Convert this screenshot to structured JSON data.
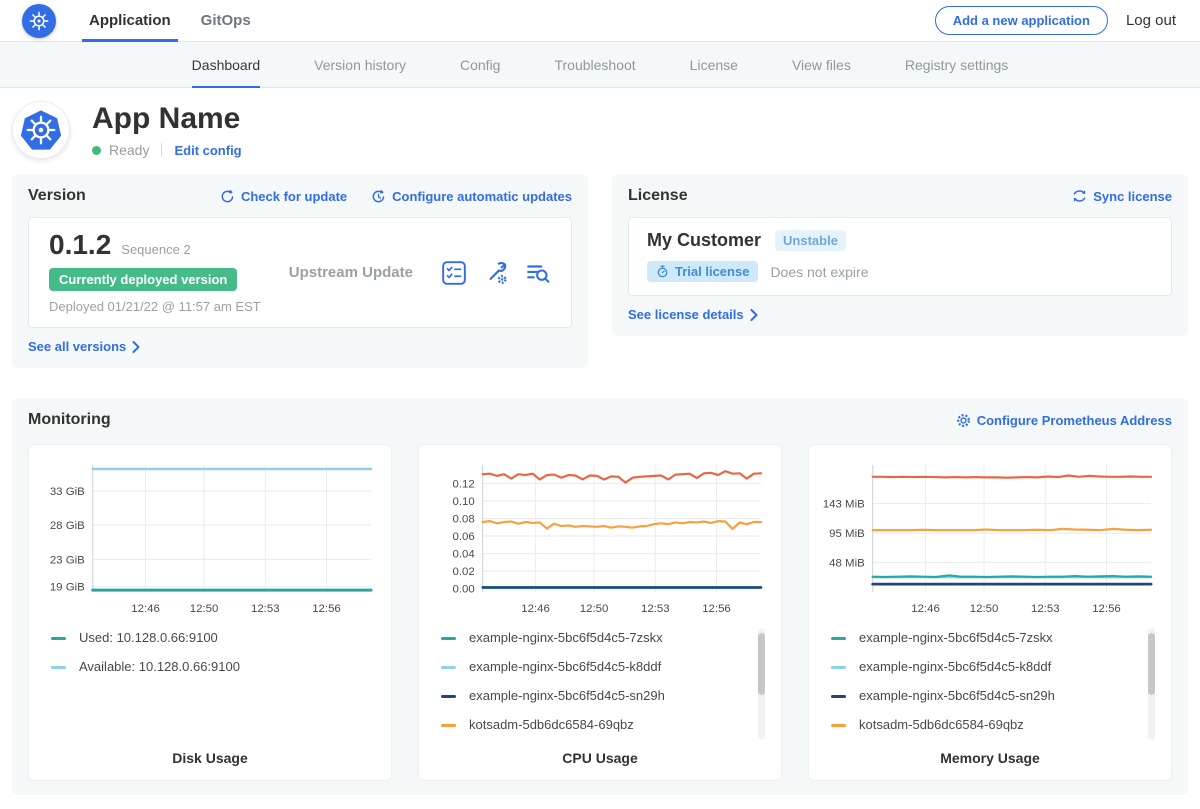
{
  "brand": {
    "accent": "#326de6"
  },
  "top_nav": {
    "tabs": [
      {
        "label": "Application"
      },
      {
        "label": "GitOps"
      }
    ],
    "add_app_button": "Add a new application",
    "log_out": "Log out"
  },
  "sub_nav": {
    "tabs": [
      "Dashboard",
      "Version history",
      "Config",
      "Troubleshoot",
      "License",
      "View files",
      "Registry settings"
    ],
    "active": "Dashboard"
  },
  "app_header": {
    "title": "App Name",
    "status": "Ready",
    "edit_config": "Edit config"
  },
  "version": {
    "heading": "Version",
    "check_for_update": "Check for update",
    "configure_auto_updates": "Configure automatic updates",
    "number": "0.1.2",
    "sequence": "Sequence 2",
    "deployed_badge": "Currently deployed version",
    "deployed_at": "Deployed 01/21/22 @ 11:57 am EST",
    "source": "Upstream Update",
    "see_all": "See all versions"
  },
  "license": {
    "heading": "License",
    "sync": "Sync license",
    "customer": "My Customer",
    "channel_badge": "Unstable",
    "type_badge": "Trial license",
    "expiration": "Does not expire",
    "details": "See license details"
  },
  "monitoring": {
    "heading": "Monitoring",
    "configure": "Configure Prometheus Address"
  },
  "chart_data": [
    {
      "type": "line",
      "title": "Disk Usage",
      "ylim": [
        18.2,
        36.8
      ],
      "yticks": [
        {
          "value": 33,
          "label": "33 GiB"
        },
        {
          "value": 28,
          "label": "28 GiB"
        },
        {
          "value": 23,
          "label": "23 GiB"
        },
        {
          "value": 19,
          "label": "19 GiB"
        }
      ],
      "xticks": [
        {
          "pos": 0.19,
          "label": "12:46"
        },
        {
          "pos": 0.4,
          "label": "12:50"
        },
        {
          "pos": 0.62,
          "label": "12:53"
        },
        {
          "pos": 0.84,
          "label": "12:56"
        }
      ],
      "grid": true,
      "legend_position": "bottom-left",
      "legend_scrollbar": false,
      "legend": [
        {
          "label": "Used: 10.128.0.66:9100",
          "color": "#28a7a4"
        },
        {
          "label": "Available: 10.128.0.66:9100",
          "color": "#8cd3e6"
        }
      ],
      "series": [
        {
          "name": "Used: 10.128.0.66:9100",
          "color": "#28a7a4",
          "width": 3,
          "values": [
            18.5,
            18.5
          ]
        },
        {
          "name": "Available: 10.128.0.66:9100",
          "color": "#8cd3e6",
          "width": 2.5,
          "values": [
            36.2,
            36.2
          ]
        }
      ]
    },
    {
      "type": "line",
      "title": "CPU Usage",
      "ylim": [
        -0.004,
        0.141
      ],
      "yticks": [
        {
          "value": 0.12,
          "label": "0.12"
        },
        {
          "value": 0.1,
          "label": "0.10"
        },
        {
          "value": 0.08,
          "label": "0.08"
        },
        {
          "value": 0.06,
          "label": "0.06"
        },
        {
          "value": 0.04,
          "label": "0.04"
        },
        {
          "value": 0.02,
          "label": "0.02"
        },
        {
          "value": 0.0,
          "label": "0.00"
        }
      ],
      "xticks": [
        {
          "pos": 0.19,
          "label": "12:46"
        },
        {
          "pos": 0.4,
          "label": "12:50"
        },
        {
          "pos": 0.62,
          "label": "12:53"
        },
        {
          "pos": 0.84,
          "label": "12:56"
        }
      ],
      "grid": true,
      "legend_position": "bottom-left",
      "legend_scrollbar": true,
      "legend": [
        {
          "label": "example-nginx-5bc6f5d4c5-7zskx",
          "color": "#28a7a4"
        },
        {
          "label": "example-nginx-5bc6f5d4c5-k8ddf",
          "color": "#8cd3e6"
        },
        {
          "label": "example-nginx-5bc6f5d4c5-sn29h",
          "color": "#25437f"
        },
        {
          "label": "kotsadm-5db6dc6584-69qbz",
          "color": "#f7a13d"
        }
      ],
      "series": [
        {
          "name": "example-nginx-5bc6f5d4c5-k8ddf",
          "color": "#8cd3e6",
          "width": 2.5,
          "values": [
            0.001,
            0.001
          ]
        },
        {
          "name": "example-nginx-5bc6f5d4c5-7zskx",
          "color": "#28a7a4",
          "width": 2.5,
          "values": [
            0.0012,
            0.0012
          ]
        },
        {
          "name": "example-nginx-5bc6f5d4c5-sn29h",
          "color": "#25437f",
          "width": 2.5,
          "values": [
            0.0015,
            0.0015
          ]
        },
        {
          "name": "kotsadm-5db6dc6584-69qbz",
          "color": "#f7a13d",
          "width": 2.2,
          "values": [
            0.076,
            0.077,
            0.0745,
            0.076,
            0.0765,
            0.074,
            0.076,
            0.075,
            0.0755,
            0.0685,
            0.074,
            0.0715,
            0.072,
            0.0705,
            0.0715,
            0.071,
            0.0705,
            0.0715,
            0.0695,
            0.071,
            0.0705,
            0.0695,
            0.071,
            0.0715,
            0.0735,
            0.0745,
            0.0735,
            0.0755,
            0.0745,
            0.076,
            0.0755,
            0.0765,
            0.075,
            0.077,
            0.0765,
            0.068,
            0.0755,
            0.0735,
            0.076,
            0.076
          ]
        },
        {
          "name": "",
          "color": "#e76742",
          "width": 2.2,
          "values": [
            0.1305,
            0.131,
            0.1285,
            0.1305,
            0.1255,
            0.1305,
            0.1295,
            0.131,
            0.1245,
            0.1295,
            0.13,
            0.1265,
            0.1295,
            0.129,
            0.1245,
            0.129,
            0.1285,
            0.1245,
            0.128,
            0.1275,
            0.121,
            0.1265,
            0.1275,
            0.128,
            0.1285,
            0.129,
            0.1245,
            0.13,
            0.1305,
            0.131,
            0.126,
            0.1315,
            0.132,
            0.1295,
            0.134,
            0.131,
            0.1315,
            0.1255,
            0.131,
            0.1315
          ]
        }
      ]
    },
    {
      "type": "line",
      "title": "Memory Usage",
      "ylim": [
        0,
        205
      ],
      "yticks": [
        {
          "value": 143,
          "label": "143 MiB"
        },
        {
          "value": 95,
          "label": "95 MiB"
        },
        {
          "value": 48,
          "label": "48 MiB"
        }
      ],
      "xticks": [
        {
          "pos": 0.19,
          "label": "12:46"
        },
        {
          "pos": 0.4,
          "label": "12:50"
        },
        {
          "pos": 0.62,
          "label": "12:53"
        },
        {
          "pos": 0.84,
          "label": "12:56"
        }
      ],
      "grid": true,
      "legend_position": "bottom-left",
      "legend_scrollbar": true,
      "legend": [
        {
          "label": "example-nginx-5bc6f5d4c5-7zskx",
          "color": "#28a7a4"
        },
        {
          "label": "example-nginx-5bc6f5d4c5-k8ddf",
          "color": "#8cd3e6"
        },
        {
          "label": "example-nginx-5bc6f5d4c5-sn29h",
          "color": "#25437f"
        },
        {
          "label": "kotsadm-5db6dc6584-69qbz",
          "color": "#f7a13d"
        }
      ],
      "series": [
        {
          "name": "example-nginx-5bc6f5d4c5-k8ddf",
          "color": "#8cd3e6",
          "width": 2.2,
          "values": [
            24,
            24
          ]
        },
        {
          "name": "example-nginx-5bc6f5d4c5-7zskx",
          "color": "#28a7a4",
          "width": 2.2,
          "values": [
            25,
            24.5,
            25,
            25.5,
            25,
            24.5,
            27,
            25,
            25,
            24.5,
            25,
            25.5,
            25,
            24.5,
            25,
            25,
            26,
            25,
            25.5,
            26,
            25,
            25.5,
            25
          ]
        },
        {
          "name": "example-nginx-5bc6f5d4c5-sn29h",
          "color": "#25437f",
          "width": 2.8,
          "values": [
            13,
            13
          ]
        },
        {
          "name": "kotsadm-5db6dc6584-69qbz",
          "color": "#f7a13d",
          "width": 2.2,
          "values": [
            100,
            100,
            100,
            100,
            100.5,
            100,
            100,
            100,
            100,
            101,
            100,
            100,
            100,
            100.5,
            100,
            102,
            101,
            100.5,
            100,
            102,
            100.5,
            100,
            100.5
          ]
        },
        {
          "name": "",
          "color": "#e76742",
          "width": 2.2,
          "values": [
            186,
            186,
            185.5,
            186,
            185.5,
            186,
            185.5,
            185,
            185.5,
            185,
            185.5,
            185,
            185,
            184.5,
            185,
            185.5,
            185,
            186.5,
            185.5,
            188,
            186,
            187.5,
            186.5,
            186,
            186,
            186.5,
            186,
            186
          ]
        }
      ]
    }
  ]
}
